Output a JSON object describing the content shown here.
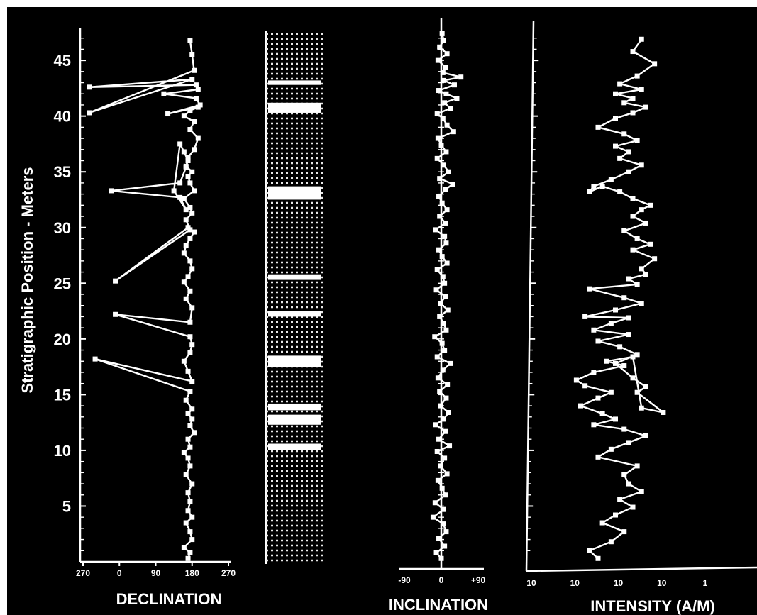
{
  "chart_data": [
    {
      "type": "line",
      "panel": "declination",
      "xlabel": "DECLINATION",
      "ylabel": "Stratigraphic Position - Meters",
      "x_tick_labels": [
        "270",
        "0",
        "90",
        "180",
        "270"
      ],
      "y_tick_labels": [
        "5",
        "10",
        "15",
        "20",
        "25",
        "30",
        "35",
        "40",
        "45"
      ],
      "xlim": [
        -90,
        270
      ],
      "ylim": [
        0,
        48
      ],
      "series": [
        {
          "x": [
            170,
            175,
            160,
            180,
            175,
            165,
            180,
            170,
            175,
            170,
            180,
            165,
            175,
            170,
            160,
            175,
            170,
            185,
            175,
            180,
            170,
            180,
            165,
            175,
            -60,
            180,
            170,
            160,
            175,
            180,
            175,
            -10,
            175,
            180,
            165,
            175,
            160,
            170,
            180,
            175,
            160,
            165,
            175,
            185,
            170,
            -10,
            175,
            165,
            180,
            175,
            160,
            185,
            175,
            170,
            180,
            165,
            170,
            160,
            150,
            135,
            165,
            150,
            -20,
            150,
            165,
            170,
            185,
            195,
            175,
            185,
            160,
            175,
            195,
            120,
            200,
            190,
            110,
            195,
            190,
            -75,
            180,
            -75,
            185,
            180,
            175
          ],
          "y": [
            0.3,
            0.8,
            1.3,
            2.0,
            2.7,
            3.5,
            4.0,
            4.6,
            5.4,
            6.2,
            7.0,
            7.8,
            8.6,
            9.3,
            9.8,
            10.3,
            11.0,
            11.6,
            12.2,
            12.8,
            13.3,
            13.7,
            14.5,
            15.3,
            18.2,
            16.2,
            17.1,
            18.0,
            18.8,
            19.5,
            20.2,
            22.2,
            21.5,
            22.8,
            23.6,
            24.3,
            25.1,
            25.6,
            26.3,
            27.0,
            27.7,
            28.4,
            29.0,
            29.6,
            30.0,
            25.2,
            29.8,
            30.7,
            31.3,
            31.8,
            32.6,
            33.3,
            34.0,
            34.6,
            35.0,
            35.5,
            36.0,
            36.8,
            37.5,
            33.3,
            31.6,
            32.7,
            33.3,
            34.0,
            35.4,
            36.3,
            37.0,
            38.0,
            38.8,
            39.5,
            40.0,
            40.5,
            40.8,
            40.2,
            41.0,
            41.6,
            42.0,
            42.4,
            42.8,
            42.6,
            43.3,
            40.3,
            44.1,
            45.5,
            46.8
          ]
        }
      ]
    },
    {
      "type": "table",
      "panel": "polarity-column",
      "y_range": [
        0,
        48
      ],
      "normal_intervals": [
        [
          10.0,
          10.6
        ],
        [
          12.3,
          13.2
        ],
        [
          13.6,
          14.2
        ],
        [
          17.5,
          18.5
        ],
        [
          22.0,
          22.5
        ],
        [
          25.3,
          25.8
        ],
        [
          32.5,
          33.7
        ],
        [
          40.3,
          41.2
        ],
        [
          42.8,
          43.2
        ]
      ]
    },
    {
      "type": "line",
      "panel": "inclination",
      "xlabel": "INCLINATION",
      "x_tick_labels": [
        "-90",
        "0",
        "+90"
      ],
      "xlim": [
        -90,
        90
      ],
      "ylim": [
        0,
        48
      ],
      "series": [
        {
          "x": [
            0,
            -12,
            8,
            -6,
            12,
            5,
            -20,
            6,
            -15,
            10,
            2,
            -8,
            14,
            -2,
            8,
            -10,
            20,
            -6,
            10,
            -14,
            6,
            18,
            -2,
            12,
            -4,
            15,
            -8,
            4,
            22,
            -10,
            8,
            2,
            -16,
            12,
            6,
            -4,
            16,
            -2,
            10,
            -12,
            8,
            4,
            -10,
            14,
            2,
            -6,
            12,
            8,
            -14,
            10,
            -4,
            14,
            2,
            -6,
            10,
            28,
            -4,
            18,
            6,
            -10,
            12,
            0,
            -8,
            30,
            14,
            4,
            -10,
            22,
            8,
            38,
            12,
            -6,
            32,
            6,
            48,
            4,
            10,
            -8,
            14,
            -4,
            6,
            2
          ],
          "y": [
            0.3,
            0.8,
            1.4,
            2.1,
            2.7,
            3.4,
            4.0,
            4.7,
            5.3,
            6.0,
            6.6,
            7.3,
            7.9,
            8.6,
            9.3,
            9.9,
            10.4,
            11.0,
            11.7,
            12.3,
            12.8,
            13.4,
            14.0,
            14.7,
            15.3,
            15.9,
            16.5,
            17.2,
            17.8,
            18.4,
            19.0,
            19.6,
            20.2,
            20.8,
            21.4,
            22.0,
            22.6,
            23.2,
            23.8,
            24.4,
            25.0,
            25.6,
            26.2,
            26.8,
            27.4,
            28.0,
            28.6,
            29.2,
            29.8,
            30.4,
            31.0,
            31.6,
            32.2,
            32.8,
            33.4,
            33.9,
            34.4,
            35.0,
            35.6,
            36.2,
            36.8,
            37.4,
            38.0,
            38.6,
            39.2,
            39.8,
            40.2,
            40.7,
            41.2,
            41.6,
            42.0,
            42.3,
            42.8,
            43.2,
            43.5,
            43.9,
            44.4,
            45.0,
            45.6,
            46.2,
            46.8,
            47.4
          ]
        }
      ]
    },
    {
      "type": "line",
      "panel": "intensity",
      "xlabel": "INTENSITY (A/M)",
      "x_tick_labels": [
        "10",
        "10",
        "10",
        "10",
        "1"
      ],
      "xlim": [
        0,
        4
      ],
      "ylim": [
        0,
        48
      ],
      "series": [
        {
          "x": [
            1.6,
            1.4,
            1.9,
            2.2,
            1.7,
            2.0,
            2.4,
            2.1,
            2.6,
            2.3,
            2.2,
            2.5,
            1.6,
            1.9,
            2.3,
            2.7,
            2.2,
            1.5,
            2.0,
            1.7,
            1.2,
            1.6,
            1.9,
            1.3,
            1.1,
            1.5,
            2.2,
            1.8,
            2.4,
            2.6,
            3.1,
            2.5,
            2.7,
            2.4,
            2.0,
            2.5,
            2.1,
            1.6,
            2.3,
            1.5,
            1.9,
            2.3,
            1.3,
            2.0,
            2.6,
            2.2,
            1.4,
            2.5,
            2.3,
            2.7,
            2.6,
            2.9,
            2.4,
            2.8,
            2.5,
            2.2,
            2.7,
            2.4,
            2.6,
            2.8,
            2.4,
            2.1,
            1.7,
            1.4,
            1.5,
            1.9,
            2.3,
            2.6,
            2.1,
            2.3,
            2.0,
            2.5,
            2.2,
            1.6,
            2.0,
            2.4,
            2.7,
            2.2,
            2.4,
            2.0,
            2.6,
            2.1,
            2.5,
            2.9,
            2.4,
            2.6
          ],
          "y": [
            0.3,
            1.0,
            1.8,
            2.7,
            3.5,
            4.2,
            4.9,
            5.6,
            6.3,
            7.0,
            7.8,
            8.6,
            9.4,
            10.1,
            10.7,
            11.3,
            11.9,
            12.3,
            12.8,
            13.3,
            14.0,
            14.7,
            15.2,
            15.8,
            16.3,
            17.0,
            17.6,
            18.0,
            18.4,
            13.8,
            13.4,
            15.2,
            15.7,
            16.5,
            17.8,
            18.6,
            19.3,
            19.8,
            20.4,
            20.8,
            21.4,
            21.9,
            22.0,
            22.6,
            23.2,
            23.7,
            24.5,
            24.9,
            25.4,
            25.8,
            26.3,
            27.2,
            28.0,
            28.5,
            29.0,
            29.7,
            30.4,
            31.0,
            31.6,
            32.0,
            32.6,
            33.2,
            33.7,
            33.2,
            33.7,
            34.3,
            35.0,
            35.6,
            36.2,
            36.8,
            37.3,
            37.8,
            38.4,
            39.0,
            39.8,
            40.3,
            40.8,
            41.2,
            41.6,
            42.0,
            42.4,
            42.9,
            43.6,
            44.7,
            45.8,
            46.9
          ]
        }
      ]
    }
  ]
}
